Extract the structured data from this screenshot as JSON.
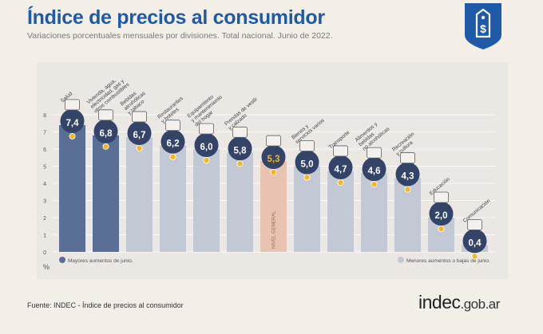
{
  "header": {
    "title": "Índice de precios al consumidor",
    "subtitle": "Variaciones porcentuales mensuales por divisiones. Total nacional. Junio de 2022."
  },
  "footer": {
    "source": "Fuente: INDEC - Índice de precios al consumidor",
    "brand_main": "indec",
    "brand_domain": ".gob.ar"
  },
  "legend": {
    "high": "Mayores aumentos de junio.",
    "low": "Menores aumentos o bajas de junio."
  },
  "colors": {
    "high": "#5a6f96",
    "low": "#c3c9d4",
    "general": "#e8c3b1",
    "title": "#1e5aa8",
    "gold": "#f3b81d",
    "circle": "#344368",
    "panel": "#ebe8e3"
  },
  "chart_data": {
    "type": "bar",
    "ylabel": "%",
    "ylim": [
      0,
      8
    ],
    "yticks": [
      "0",
      "1",
      "2",
      "3",
      "4",
      "5",
      "6",
      "7",
      "8"
    ],
    "categories": [
      {
        "name": "Salud",
        "value": 7.4,
        "label": "7,4",
        "group": "high",
        "icon": "first-aid-icon"
      },
      {
        "name": "Vivienda, agua, electricidad, gas y otros combustibles",
        "value": 6.8,
        "label": "6,8",
        "group": "high",
        "icon": "lightbulb-icon"
      },
      {
        "name": "Bebidas alcohólicas y tabaco",
        "value": 6.7,
        "label": "6,7",
        "group": "low",
        "icon": "wine-glass-icon"
      },
      {
        "name": "Restaurantes y hoteles",
        "value": 6.2,
        "label": "6,2",
        "group": "low",
        "icon": "cutlery-icon"
      },
      {
        "name": "Equipamiento y mantenimiento del hogar",
        "value": 6.0,
        "label": "6,0",
        "group": "low",
        "icon": "appliance-icon"
      },
      {
        "name": "Prendas de vestir y calzado",
        "value": 5.8,
        "label": "5,8",
        "group": "low",
        "icon": "shoe-icon"
      },
      {
        "name": "Nivel general",
        "value": 5.3,
        "label": "5,3",
        "group": "general",
        "icon": "shopping-bag-icon",
        "bar_text": "NIVEL GENERAL"
      },
      {
        "name": "Bienes y servicios varios",
        "value": 5.0,
        "label": "5,0",
        "group": "low",
        "icon": "razor-icon"
      },
      {
        "name": "Transporte",
        "value": 4.7,
        "label": "4,7",
        "group": "low",
        "icon": "bus-icon"
      },
      {
        "name": "Alimentos y bebidas no alcohólicas",
        "value": 4.6,
        "label": "4,6",
        "group": "low",
        "icon": "food-icon"
      },
      {
        "name": "Recreación y cultura",
        "value": 4.3,
        "label": "4,3",
        "group": "low",
        "icon": "beach-icon"
      },
      {
        "name": "Educación",
        "value": 2.0,
        "label": "2,0",
        "group": "low",
        "icon": "books-icon"
      },
      {
        "name": "Comunicación",
        "value": 0.4,
        "label": "0,4",
        "group": "low",
        "icon": "phone-icon"
      }
    ],
    "category_lines": [
      [
        "Salud"
      ],
      [
        "Vivienda, agua,",
        "electricidad, gas y",
        "otros combustibles"
      ],
      [
        "Bebidas",
        "alcohólicas",
        "y tabaco"
      ],
      [
        "Restaurantes",
        "y hoteles"
      ],
      [
        "Equipamiento",
        "y mantenimiento",
        "del hogar"
      ],
      [
        "Prendas de vestir",
        "y calzado"
      ],
      [],
      [
        "Bienes y",
        "servicios varios"
      ],
      [
        "Transporte"
      ],
      [
        "Alimentos y",
        "bebidas",
        "no alcohólicas"
      ],
      [
        "Recreación",
        "y cultura"
      ],
      [
        "Educación"
      ],
      [
        "Comunicación"
      ]
    ]
  }
}
